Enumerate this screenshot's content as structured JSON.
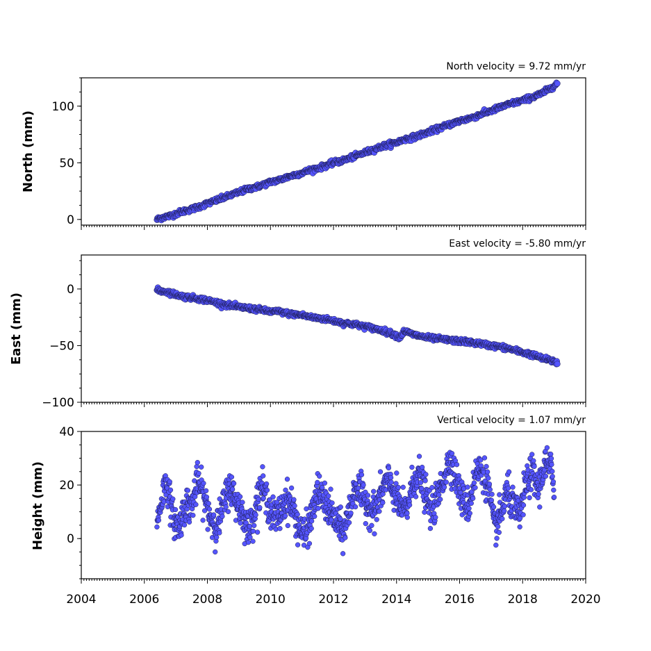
{
  "chart_data": [
    {
      "type": "scatter",
      "annotation": "North velocity = 9.72 mm/yr",
      "ylabel": "North (mm)",
      "xlim": [
        2004,
        2020
      ],
      "ylim": [
        -5,
        125
      ],
      "yticks": [
        0,
        50,
        100
      ],
      "ytick_labels": [
        "0",
        "50",
        "100"
      ],
      "color": "#5555ff",
      "series": [
        {
          "x": [
            2006.4,
            2006.6,
            2006.8,
            2007.0,
            2007.2,
            2007.5,
            2007.8,
            2008.0,
            2008.3,
            2008.6,
            2009.0,
            2009.3,
            2009.6,
            2010.0,
            2010.3,
            2010.6,
            2011.0,
            2011.3,
            2011.6,
            2012.0,
            2012.3,
            2012.6,
            2013.0,
            2013.3,
            2013.6,
            2014.0,
            2014.3,
            2014.6,
            2015.0,
            2015.3,
            2015.6,
            2016.0,
            2016.3,
            2016.6,
            2017.0,
            2017.3,
            2017.6,
            2018.0,
            2018.3,
            2018.6,
            2019.0,
            2019.1
          ],
          "y": [
            0,
            2,
            3,
            5,
            7,
            9,
            12,
            14,
            17,
            20,
            24,
            27,
            29,
            33,
            35,
            38,
            41,
            44,
            46,
            50,
            52,
            55,
            59,
            62,
            65,
            68,
            71,
            73,
            77,
            80,
            83,
            87,
            89,
            92,
            96,
            99,
            102,
            105,
            108,
            111,
            118,
            120
          ]
        }
      ]
    },
    {
      "type": "scatter",
      "annotation": "East velocity = -5.80 mm/yr",
      "ylabel": "East (mm)",
      "xlim": [
        2004,
        2020
      ],
      "ylim": [
        -100,
        30
      ],
      "yticks": [
        -100,
        -50,
        0
      ],
      "ytick_labels": [
        "−100",
        "−50",
        "0"
      ],
      "color": "#5555ff",
      "series": [
        {
          "x": [
            2006.4,
            2006.6,
            2006.8,
            2007.0,
            2007.3,
            2007.6,
            2008.0,
            2008.3,
            2008.6,
            2009.0,
            2009.3,
            2009.6,
            2010.0,
            2010.3,
            2010.6,
            2011.0,
            2011.3,
            2011.6,
            2012.0,
            2012.3,
            2012.6,
            2013.0,
            2013.3,
            2013.6,
            2014.0,
            2014.1,
            2014.25,
            2014.5,
            2014.8,
            2015.0,
            2015.3,
            2015.6,
            2016.0,
            2016.3,
            2016.6,
            2017.0,
            2017.3,
            2017.6,
            2018.0,
            2018.3,
            2018.6,
            2019.0,
            2019.1
          ],
          "y": [
            -1,
            -2,
            -3,
            -5,
            -7,
            -8,
            -10,
            -12,
            -14,
            -16,
            -17,
            -18,
            -20,
            -20,
            -22,
            -23,
            -25,
            -26,
            -28,
            -30,
            -31,
            -33,
            -35,
            -37,
            -41,
            -43,
            -37,
            -40,
            -42,
            -43,
            -44,
            -45,
            -46,
            -47,
            -48,
            -50,
            -51,
            -53,
            -56,
            -58,
            -61,
            -64,
            -65
          ]
        }
      ]
    },
    {
      "type": "scatter",
      "annotation": "Vertical velocity = 1.07 mm/yr",
      "ylabel": "Height (mm)",
      "xlabel_ticks": [
        "2004",
        "2006",
        "2008",
        "2010",
        "2012",
        "2014",
        "2016",
        "2018",
        "2020"
      ],
      "xlim": [
        2004,
        2020
      ],
      "ylim": [
        -15,
        40
      ],
      "yticks": [
        0,
        20,
        40
      ],
      "ytick_labels": [
        "0",
        "20",
        "40"
      ],
      "color": "#5555ff",
      "series": [
        {
          "x": [
            2006.4,
            2006.5,
            2006.7,
            2006.9,
            2007.1,
            2007.3,
            2007.5,
            2007.7,
            2007.9,
            2008.1,
            2008.3,
            2008.5,
            2008.7,
            2008.9,
            2009.1,
            2009.3,
            2009.5,
            2009.7,
            2009.9,
            2010.1,
            2010.3,
            2010.5,
            2010.7,
            2010.9,
            2011.1,
            2011.3,
            2011.5,
            2011.7,
            2011.9,
            2012.1,
            2012.3,
            2012.5,
            2012.7,
            2012.9,
            2013.1,
            2013.3,
            2013.5,
            2013.7,
            2013.9,
            2014.1,
            2014.3,
            2014.5,
            2014.7,
            2014.9,
            2015.1,
            2015.3,
            2015.5,
            2015.7,
            2015.9,
            2016.1,
            2016.3,
            2016.5,
            2016.7,
            2016.9,
            2017.1,
            2017.3,
            2017.5,
            2017.7,
            2017.9,
            2018.1,
            2018.3,
            2018.5,
            2018.7,
            2018.9,
            2019.0
          ],
          "y": [
            5,
            12,
            22,
            8,
            4,
            13,
            12,
            22,
            15,
            8,
            4,
            12,
            20,
            14,
            10,
            3,
            10,
            20,
            14,
            8,
            9,
            15,
            12,
            4,
            1,
            8,
            18,
            14,
            10,
            6,
            2,
            10,
            20,
            16,
            12,
            10,
            16,
            22,
            18,
            12,
            10,
            20,
            25,
            17,
            10,
            15,
            23,
            30,
            22,
            14,
            12,
            24,
            26,
            20,
            4,
            8,
            18,
            12,
            8,
            20,
            25,
            18,
            28,
            26,
            20
          ]
        }
      ]
    }
  ]
}
